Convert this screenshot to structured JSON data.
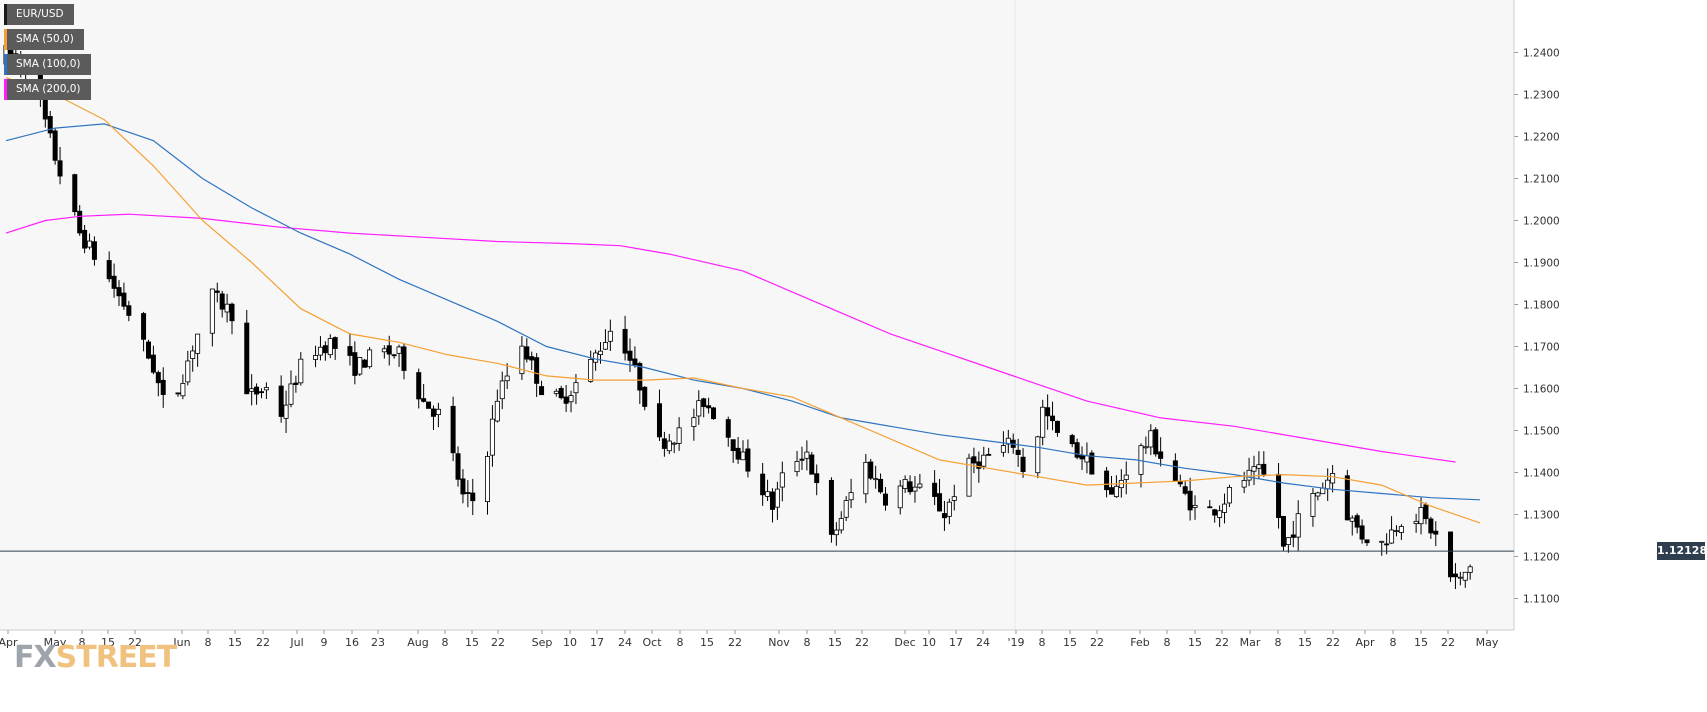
{
  "colors": {
    "background": "#f7f7f8",
    "grid": "#e7e7e9",
    "bull": "#ffffff",
    "bear": "#000000",
    "sma50": "#f5a033",
    "sma100": "#2f74c0",
    "sma200": "#ff1eff",
    "price_line": "#2e3e4e"
  },
  "legend": [
    {
      "label": "EUR/USD",
      "color": "#1a1a1a"
    },
    {
      "label": "SMA (50,0)",
      "color": "#f5a033"
    },
    {
      "label": "SMA (100,0)",
      "color": "#2f74c0"
    },
    {
      "label": "SMA (200,0)",
      "color": "#ff1eff"
    }
  ],
  "watermark": {
    "fx": "FX",
    "street": "STREET"
  },
  "current_price": "1.12128",
  "chart_data": {
    "type": "candlestick",
    "symbol": "EUR/USD",
    "ylim": [
      1.1025,
      1.2525
    ],
    "y_ticks": [
      "1.2400",
      "1.2300",
      "1.2200",
      "1.2100",
      "1.2000",
      "1.1900",
      "1.1800",
      "1.1700",
      "1.1600",
      "1.1500",
      "1.1400",
      "1.1300",
      "1.1200",
      "1.1100"
    ],
    "x_ticks": [
      "Apr",
      "May",
      "8",
      "15",
      "22",
      "Jun",
      "8",
      "15",
      "22",
      "Jul",
      "9",
      "16",
      "23",
      "Aug",
      "8",
      "15",
      "22",
      "Sep",
      "10",
      "17",
      "24",
      "Oct",
      "8",
      "15",
      "22",
      "Nov",
      "8",
      "15",
      "22",
      "Dec",
      "10",
      "17",
      "24",
      "'19",
      "8",
      "15",
      "22",
      "Feb",
      "8",
      "15",
      "22",
      "Mar",
      "8",
      "15",
      "22",
      "Apr",
      "8",
      "15",
      "22",
      "May"
    ],
    "grid": "vertical lines at Jan 1 2019 only",
    "current_price": 1.12128,
    "sma_50": [
      [
        0,
        1.234
      ],
      [
        10,
        1.23
      ],
      [
        20,
        1.224
      ],
      [
        30,
        1.213
      ],
      [
        40,
        1.2
      ],
      [
        50,
        1.19
      ],
      [
        60,
        1.179
      ],
      [
        70,
        1.173
      ],
      [
        80,
        1.171
      ],
      [
        90,
        1.168
      ],
      [
        100,
        1.166
      ],
      [
        110,
        1.163
      ],
      [
        120,
        1.162
      ],
      [
        130,
        1.162
      ],
      [
        140,
        1.1625
      ],
      [
        150,
        1.16
      ],
      [
        160,
        1.158
      ],
      [
        170,
        1.153
      ],
      [
        180,
        1.148
      ],
      [
        190,
        1.143
      ],
      [
        200,
        1.141
      ],
      [
        210,
        1.139
      ],
      [
        220,
        1.137
      ],
      [
        230,
        1.1375
      ],
      [
        240,
        1.138
      ],
      [
        250,
        1.139
      ],
      [
        260,
        1.1395
      ],
      [
        270,
        1.139
      ],
      [
        280,
        1.137
      ],
      [
        290,
        1.132
      ],
      [
        300,
        1.128
      ]
    ],
    "sma_100": [
      [
        0,
        1.219
      ],
      [
        10,
        1.222
      ],
      [
        20,
        1.223
      ],
      [
        30,
        1.219
      ],
      [
        40,
        1.21
      ],
      [
        50,
        1.203
      ],
      [
        60,
        1.197
      ],
      [
        70,
        1.192
      ],
      [
        80,
        1.186
      ],
      [
        90,
        1.181
      ],
      [
        100,
        1.176
      ],
      [
        110,
        1.17
      ],
      [
        120,
        1.167
      ],
      [
        130,
        1.165
      ],
      [
        140,
        1.162
      ],
      [
        150,
        1.16
      ],
      [
        160,
        1.157
      ],
      [
        170,
        1.153
      ],
      [
        180,
        1.151
      ],
      [
        190,
        1.149
      ],
      [
        200,
        1.1475
      ],
      [
        210,
        1.146
      ],
      [
        220,
        1.144
      ],
      [
        230,
        1.143
      ],
      [
        240,
        1.141
      ],
      [
        250,
        1.1395
      ],
      [
        260,
        1.1375
      ],
      [
        270,
        1.136
      ],
      [
        280,
        1.135
      ],
      [
        290,
        1.134
      ],
      [
        300,
        1.1335
      ]
    ],
    "sma_200": [
      [
        0,
        1.197
      ],
      [
        8,
        1.2
      ],
      [
        15,
        1.201
      ],
      [
        25,
        1.2015
      ],
      [
        40,
        1.2005
      ],
      [
        55,
        1.1985
      ],
      [
        70,
        1.197
      ],
      [
        85,
        1.196
      ],
      [
        100,
        1.195
      ],
      [
        115,
        1.1945
      ],
      [
        125,
        1.194
      ],
      [
        135,
        1.192
      ],
      [
        150,
        1.188
      ],
      [
        160,
        1.183
      ],
      [
        170,
        1.178
      ],
      [
        180,
        1.173
      ],
      [
        190,
        1.169
      ],
      [
        200,
        1.165
      ],
      [
        210,
        1.161
      ],
      [
        220,
        1.157
      ],
      [
        235,
        1.153
      ],
      [
        250,
        1.151
      ],
      [
        265,
        1.148
      ],
      [
        280,
        1.145
      ],
      [
        295,
        1.1425
      ]
    ],
    "candles_note": "daily OHLC, Apr 2018 - May 2019; index 0 = first visible day",
    "anchors": [
      [
        0,
        1.24
      ],
      [
        5,
        1.236
      ],
      [
        10,
        1.215
      ],
      [
        15,
        1.197
      ],
      [
        20,
        1.188
      ],
      [
        25,
        1.178
      ],
      [
        30,
        1.165
      ],
      [
        33,
        1.153
      ],
      [
        38,
        1.17
      ],
      [
        42,
        1.182
      ],
      [
        46,
        1.178
      ],
      [
        49,
        1.158
      ],
      [
        53,
        1.16
      ],
      [
        56,
        1.154
      ],
      [
        61,
        1.168
      ],
      [
        66,
        1.171
      ],
      [
        71,
        1.165
      ],
      [
        76,
        1.169
      ],
      [
        80,
        1.168
      ],
      [
        85,
        1.157
      ],
      [
        89,
        1.153
      ],
      [
        93,
        1.134
      ],
      [
        96,
        1.133
      ],
      [
        100,
        1.158
      ],
      [
        105,
        1.171
      ],
      [
        109,
        1.16
      ],
      [
        113,
        1.157
      ],
      [
        118,
        1.164
      ],
      [
        123,
        1.174
      ],
      [
        126,
        1.17
      ],
      [
        129,
        1.161
      ],
      [
        133,
        1.147
      ],
      [
        138,
        1.15
      ],
      [
        142,
        1.157
      ],
      [
        145,
        1.153
      ],
      [
        149,
        1.145
      ],
      [
        153,
        1.138
      ],
      [
        156,
        1.132
      ],
      [
        159,
        1.142
      ],
      [
        163,
        1.145
      ],
      [
        166,
        1.132
      ],
      [
        168,
        1.124
      ],
      [
        172,
        1.135
      ],
      [
        175,
        1.142
      ],
      [
        179,
        1.134
      ],
      [
        183,
        1.137
      ],
      [
        188,
        1.135
      ],
      [
        191,
        1.13
      ],
      [
        195,
        1.141
      ],
      [
        200,
        1.144
      ],
      [
        205,
        1.147
      ],
      [
        208,
        1.138
      ],
      [
        211,
        1.155
      ],
      [
        215,
        1.147
      ],
      [
        219,
        1.144
      ],
      [
        222,
        1.14
      ],
      [
        225,
        1.134
      ],
      [
        229,
        1.143
      ],
      [
        233,
        1.148
      ],
      [
        236,
        1.142
      ],
      [
        239,
        1.136
      ],
      [
        243,
        1.13
      ],
      [
        247,
        1.132
      ],
      [
        251,
        1.138
      ],
      [
        255,
        1.14
      ],
      [
        258,
        1.137
      ],
      [
        260,
        1.122
      ],
      [
        264,
        1.131
      ],
      [
        268,
        1.137
      ],
      [
        270,
        1.14
      ],
      [
        272,
        1.132
      ],
      [
        276,
        1.125
      ],
      [
        280,
        1.123
      ],
      [
        284,
        1.129
      ],
      [
        288,
        1.13
      ],
      [
        292,
        1.123
      ],
      [
        294,
        1.115
      ],
      [
        296,
        1.114
      ],
      [
        299,
        1.12
      ],
      [
        300,
        1.1213
      ]
    ]
  }
}
